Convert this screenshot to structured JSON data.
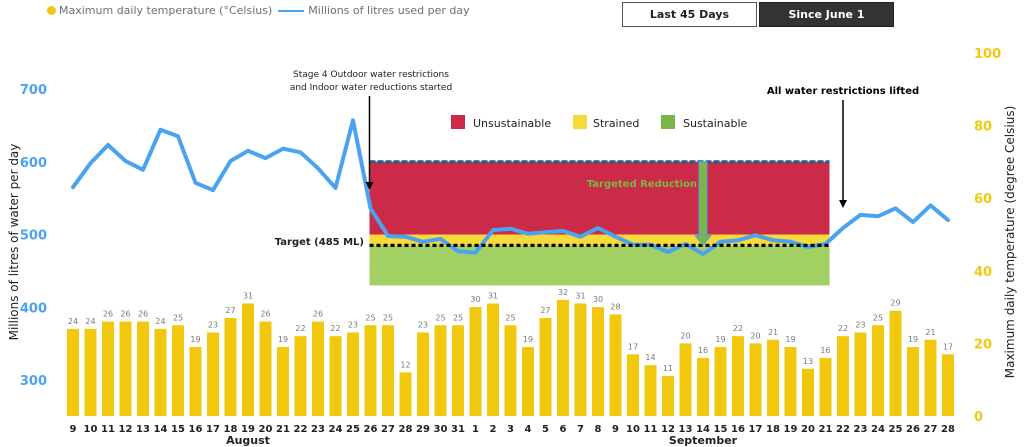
{
  "legend": {
    "temperature_label": "Maximum daily temperature (°Celsius)",
    "usage_label": "Millions of litres used per day"
  },
  "buttons": {
    "last45": "Last 45 Days",
    "since_june": "Since June 1",
    "active": "since_june"
  },
  "colors": {
    "bar": "#f2c80f",
    "line": "#4aa3f0",
    "unsustainable": "#cc2b47",
    "strained": "#f7d93a",
    "sustainable": "#a3d063",
    "top_dash": "#1f5f8b",
    "target_dash": "#000000",
    "reduction_arrow": "#7ab648"
  },
  "chart_data": {
    "type": "bar+line",
    "title": "",
    "xlabel": "",
    "ylabel_left": "Millions of litres of water per day",
    "ylabel_right": "Maximum daily temperature (degree Celsius)",
    "ylim_left": [
      250,
      750
    ],
    "yticks_left": [
      300,
      400,
      500,
      600,
      700
    ],
    "ylim_right": [
      0,
      100
    ],
    "yticks_right": [
      0,
      20,
      40,
      60,
      80,
      100
    ],
    "grid": false,
    "legend_position": "top-left",
    "categories": [
      "9",
      "10",
      "11",
      "12",
      "13",
      "14",
      "15",
      "16",
      "17",
      "18",
      "19",
      "20",
      "21",
      "22",
      "23",
      "24",
      "25",
      "26",
      "27",
      "28",
      "29",
      "30",
      "31",
      "1",
      "2",
      "3",
      "4",
      "5",
      "6",
      "7",
      "8",
      "9",
      "10",
      "11",
      "12",
      "13",
      "14",
      "15",
      "16",
      "17",
      "18",
      "19",
      "20",
      "21",
      "22",
      "23",
      "24",
      "25",
      "26",
      "27",
      "28"
    ],
    "months": [
      {
        "label": "August",
        "center_category_index": 10
      },
      {
        "label": "September",
        "center_category_index": 36
      }
    ],
    "series": [
      {
        "name": "Maximum daily temperature (°Celsius)",
        "type": "bar",
        "axis": "right",
        "values": [
          24,
          24,
          26,
          26,
          26,
          24,
          25,
          19,
          23,
          27,
          31,
          26,
          19,
          22,
          26,
          22,
          23,
          25,
          25,
          12,
          23,
          25,
          25,
          30,
          31,
          25,
          19,
          27,
          32,
          31,
          30,
          28,
          17,
          14,
          11,
          20,
          16,
          19,
          22,
          20,
          21,
          19,
          13,
          16,
          22,
          23,
          25,
          29,
          19,
          21,
          17
        ]
      },
      {
        "name": "Millions of litres used per day",
        "type": "line",
        "axis": "left",
        "values": [
          565,
          598,
          623,
          601,
          589,
          644,
          635,
          571,
          561,
          601,
          615,
          605,
          618,
          613,
          591,
          564,
          657,
          536,
          498,
          497,
          490,
          494,
          477,
          475,
          506,
          508,
          501,
          503,
          505,
          497,
          509,
          497,
          486,
          486,
          476,
          487,
          473,
          490,
          492,
          499,
          492,
          490,
          483,
          487,
          509,
          527,
          525,
          536,
          517,
          540,
          520
        ]
      }
    ],
    "zones": {
      "start_category_index": 17,
      "end_category_index": 43,
      "unsustainable": {
        "label": "Unsustainable",
        "from": 500,
        "to": 600
      },
      "strained": {
        "label": "Strained",
        "from": 485,
        "to": 500
      },
      "sustainable": {
        "label": "Sustainable",
        "from": 430,
        "to": 485
      }
    },
    "annotations": {
      "restrictions_start": {
        "line1": "Stage 4 Outdoor water restrictions",
        "line2": "and Indoor water reductions started",
        "category_index": 17
      },
      "restrictions_lifted": {
        "text": "All water restrictions lifted",
        "category_index": 44
      },
      "target": {
        "label": "Target (485 ML)",
        "value": 485
      },
      "targeted_reduction": {
        "label": "Targeted Reduction",
        "from": 600,
        "to": 485,
        "category_index": 35
      }
    }
  }
}
